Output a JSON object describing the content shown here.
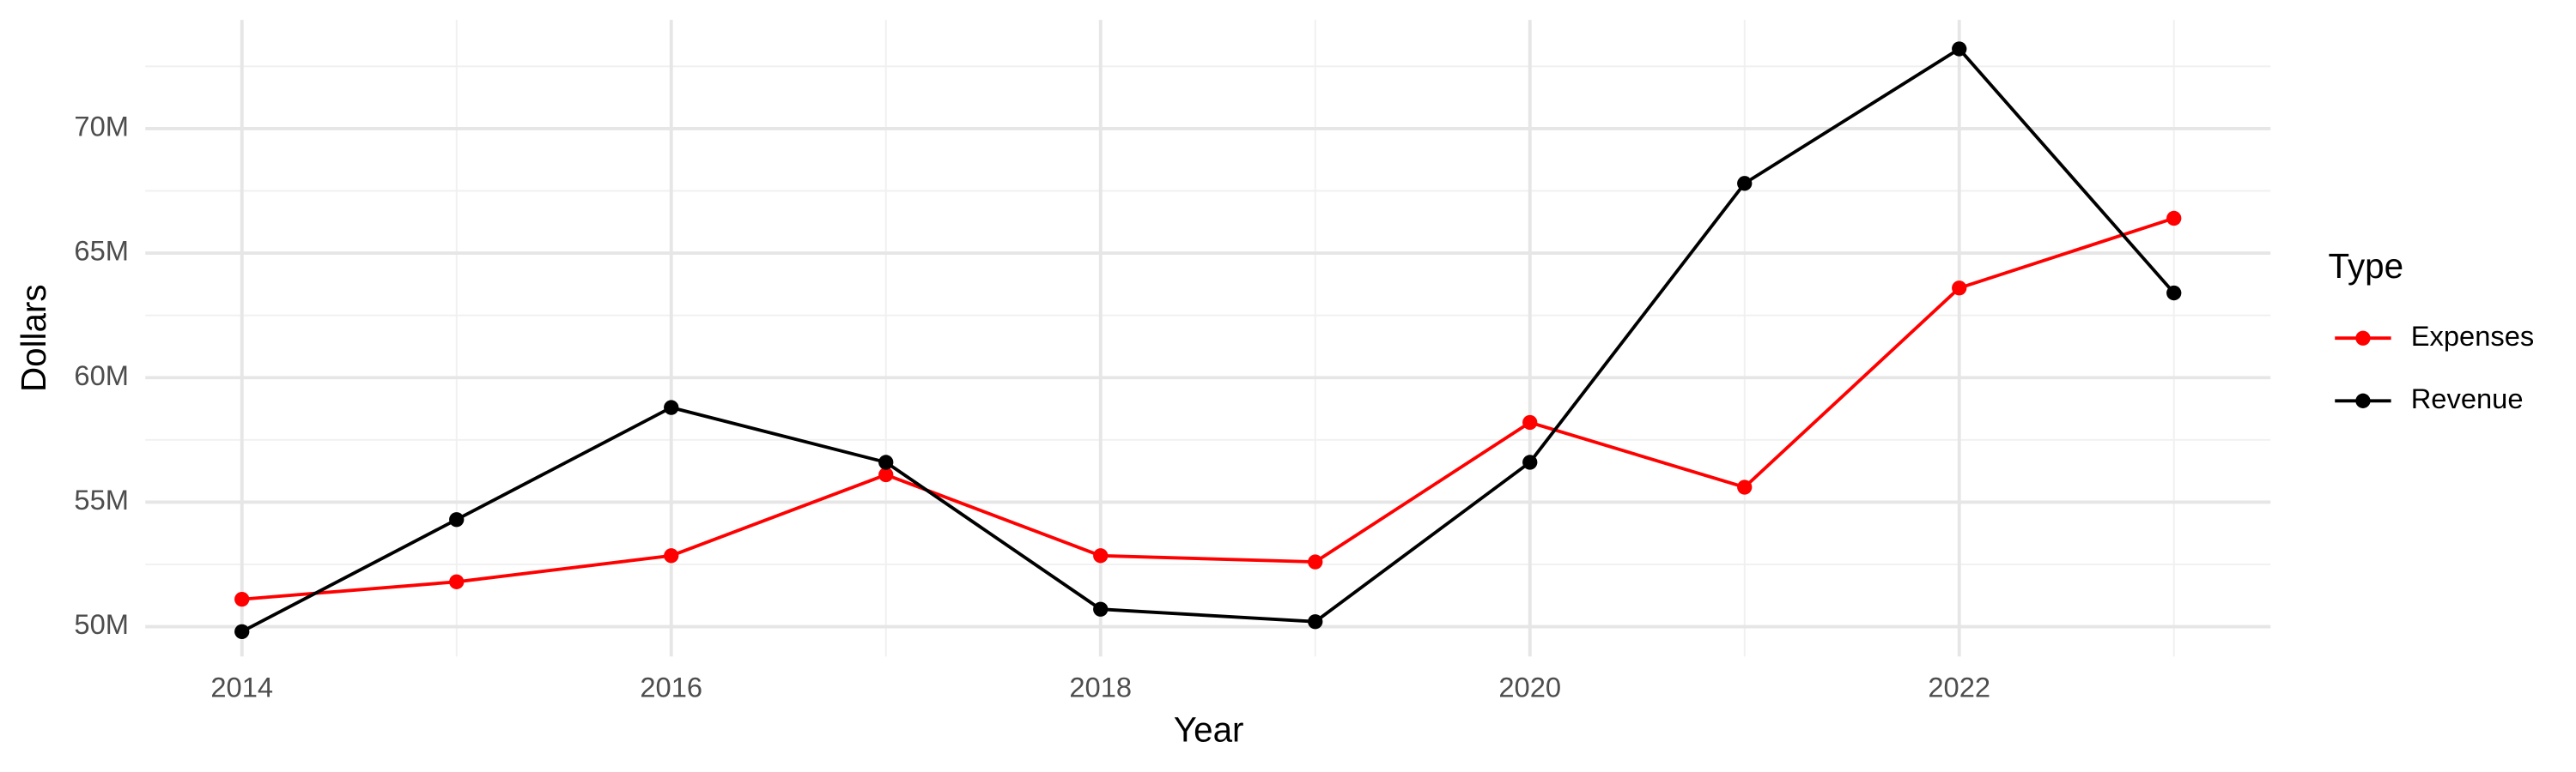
{
  "chart_data": {
    "type": "line",
    "x_label": "Year",
    "y_label": "Dollars",
    "x": [
      2014,
      2015,
      2016,
      2017,
      2018,
      2019,
      2020,
      2021,
      2022,
      2023
    ],
    "series": [
      {
        "name": "Expenses",
        "color": "#ff0000",
        "values": [
          51100000,
          51800000,
          52850000,
          56100000,
          52850000,
          52600000,
          58200000,
          55600000,
          63600000,
          66400000
        ]
      },
      {
        "name": "Revenue",
        "color": "#000000",
        "values": [
          49800000,
          54300000,
          58800000,
          56600000,
          50700000,
          50200000,
          56600000,
          67800000,
          73200000,
          63400000
        ]
      }
    ],
    "xlim": [
      2013.55,
      2023.45
    ],
    "xticks": [
      2014,
      2016,
      2018,
      2020,
      2022
    ],
    "ylim": [
      48800000,
      74370000
    ],
    "yticks": [
      {
        "value": 50000000,
        "label": "50M"
      },
      {
        "value": 55000000,
        "label": "55M"
      },
      {
        "value": 60000000,
        "label": "60M"
      },
      {
        "value": 65000000,
        "label": "65M"
      },
      {
        "value": 70000000,
        "label": "70M"
      }
    ],
    "grid": true,
    "legend": {
      "title": "Type",
      "position": "right"
    }
  }
}
